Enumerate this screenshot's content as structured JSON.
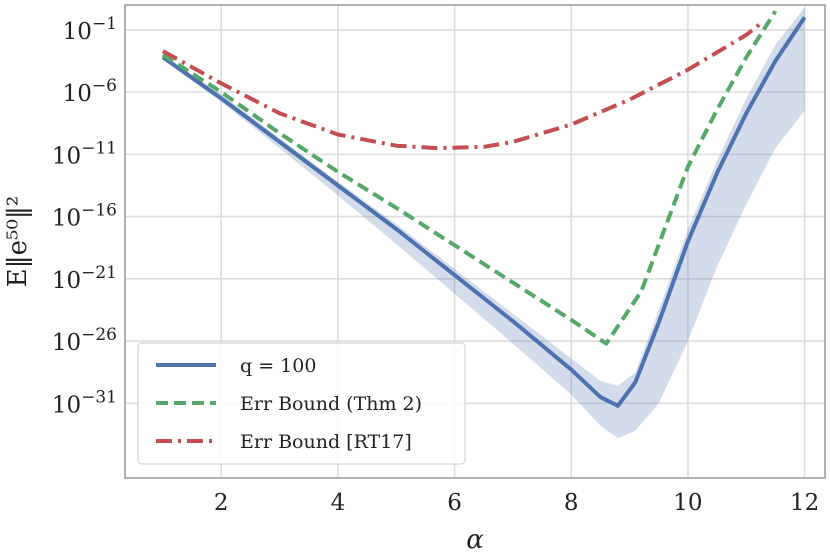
{
  "chart_data": {
    "type": "line",
    "title": "",
    "xlabel": "α",
    "ylabel": "E‖e⁵⁰‖²",
    "xlim": [
      0.35,
      12.35
    ],
    "ylim_log10": [
      -37,
      1
    ],
    "yscale": "log",
    "grid": true,
    "legend_position": "lower-left",
    "xticks": [
      2,
      4,
      6,
      8,
      10,
      12
    ],
    "yticks_exponent": [
      -1,
      -6,
      -11,
      -16,
      -21,
      -26,
      -31
    ],
    "ytick_base": "10",
    "series": [
      {
        "name": "q = 100",
        "style": "solid",
        "color": "#4c72b0",
        "x": [
          1,
          2,
          3,
          4,
          5,
          6,
          7,
          8,
          8.5,
          8.8,
          9.1,
          9.5,
          10,
          10.5,
          11,
          11.5,
          12
        ],
        "log10_y": [
          -3.2,
          -6.5,
          -10.0,
          -13.5,
          -17.0,
          -20.7,
          -24.4,
          -28.3,
          -30.5,
          -31.2,
          -29.3,
          -24.5,
          -18.0,
          -12.5,
          -7.7,
          -3.5,
          0.0
        ]
      },
      {
        "name": "Err Bound (Thm 2)",
        "style": "dashed",
        "color": "#55a868",
        "x": [
          1,
          2,
          3,
          4,
          5,
          6,
          7,
          8,
          8.6,
          9.2,
          9.6,
          10,
          10.5,
          11,
          11.5
        ],
        "log10_y": [
          -3.0,
          -6.0,
          -9.3,
          -12.4,
          -15.3,
          -18.3,
          -21.3,
          -24.3,
          -26.2,
          -22.0,
          -17.0,
          -12.0,
          -7.4,
          -3.2,
          0.5
        ]
      },
      {
        "name": "Err Bound [RT17]",
        "style": "dashdot",
        "color": "#c44e52",
        "x": [
          1,
          2,
          3,
          4,
          5,
          5.7,
          6.5,
          7,
          8,
          9,
          10,
          11,
          11.3
        ],
        "log10_y": [
          -2.7,
          -5.3,
          -7.7,
          -9.4,
          -10.3,
          -10.5,
          -10.4,
          -10.0,
          -8.6,
          -6.6,
          -4.2,
          -1.4,
          -0.3
        ]
      }
    ],
    "band": {
      "series": "q = 100",
      "color": "#4c72b0",
      "x": [
        1,
        2,
        3,
        4,
        5,
        6,
        7,
        8,
        8.5,
        8.8,
        9.1,
        9.5,
        10,
        10.5,
        11,
        11.5,
        12
      ],
      "log10_upper": [
        -3.0,
        -6.2,
        -9.7,
        -13.2,
        -16.6,
        -20.2,
        -23.8,
        -27.4,
        -29.2,
        -29.6,
        -28.5,
        -23.5,
        -17.0,
        -11.5,
        -6.5,
        -2.2,
        0.8
      ],
      "log10_lower": [
        -3.4,
        -6.8,
        -10.5,
        -14.3,
        -18.2,
        -22.2,
        -26.2,
        -30.3,
        -32.8,
        -33.8,
        -33.2,
        -31.0,
        -26.0,
        -20.0,
        -15.0,
        -10.5,
        -7.5
      ]
    }
  }
}
